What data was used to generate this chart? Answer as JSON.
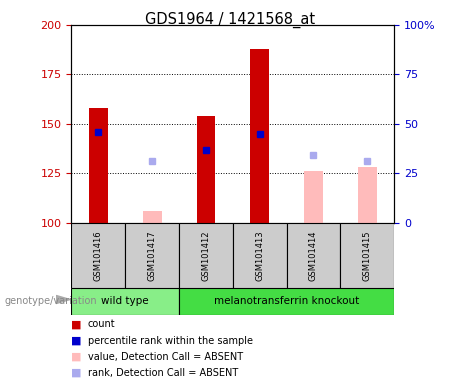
{
  "title": "GDS1964 / 1421568_at",
  "samples": [
    "GSM101416",
    "GSM101417",
    "GSM101412",
    "GSM101413",
    "GSM101414",
    "GSM101415"
  ],
  "groups": {
    "wild type": [
      0,
      1
    ],
    "melanotransferrin knockout": [
      2,
      3,
      4,
      5
    ]
  },
  "group_colors": {
    "wild type": "#88EE88",
    "melanotransferrin knockout": "#44DD44"
  },
  "ylim_left": [
    100,
    200
  ],
  "ylim_right": [
    0,
    100
  ],
  "yticks_left": [
    100,
    125,
    150,
    175,
    200
  ],
  "yticks_right": [
    0,
    25,
    50,
    75,
    100
  ],
  "ytick_labels_right": [
    "0",
    "25",
    "50",
    "75",
    "100%"
  ],
  "bar_base": 100,
  "count_values": [
    158,
    null,
    154,
    188,
    null,
    null
  ],
  "count_color": "#cc0000",
  "count_absent_values": [
    null,
    106,
    null,
    null,
    126,
    128
  ],
  "count_absent_color": "#ffbbbb",
  "rank_values_pct": [
    46,
    null,
    37,
    45,
    null,
    null
  ],
  "rank_color": "#0000cc",
  "rank_marker_size": 5,
  "rank_absent_values_pct": [
    null,
    31,
    null,
    null,
    34,
    31
  ],
  "rank_absent_color": "#aaaaee",
  "bar_width": 0.35,
  "genotype_label": "genotype/variation",
  "legend_labels": [
    "count",
    "percentile rank within the sample",
    "value, Detection Call = ABSENT",
    "rank, Detection Call = ABSENT"
  ],
  "legend_colors": [
    "#cc0000",
    "#0000cc",
    "#ffbbbb",
    "#aaaaee"
  ]
}
